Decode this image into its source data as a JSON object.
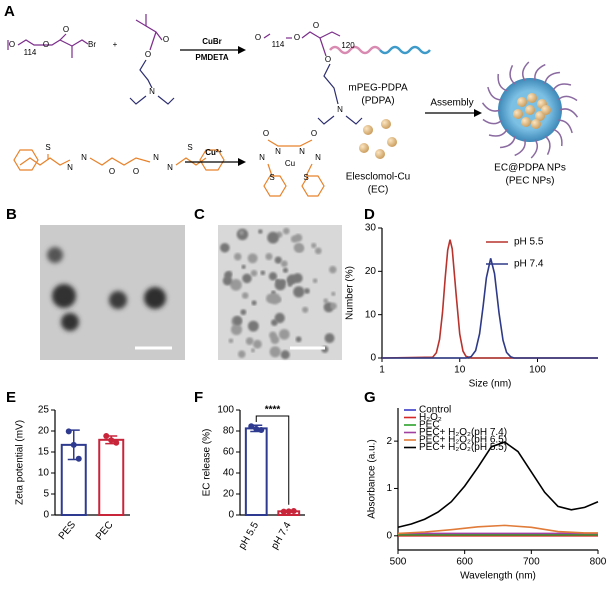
{
  "scheme": {
    "panel": "A",
    "atoms": [
      "O",
      "114",
      "O",
      "O",
      "Br",
      "+",
      "O",
      "O",
      "N",
      "O",
      "114",
      "O",
      "O",
      "O",
      "120",
      "N",
      "S",
      "N",
      "N",
      "O",
      "O",
      "N",
      "N",
      "S",
      "O",
      "O",
      "N",
      "N",
      "Cu",
      "N",
      "N",
      "S",
      "S"
    ],
    "reagents": [
      "CuBr",
      "PMDETA"
    ],
    "polymer_name": [
      "mPEG-PDPA",
      "(PDPA)"
    ],
    "assembly": "Assembly",
    "cu": "Cu²⁺",
    "ec_name": [
      "Elesclomol-Cu",
      "(EC)"
    ],
    "np_name": [
      "EC@PDPA NPs",
      "(PEC NPs)"
    ]
  },
  "images": [
    {
      "panel": "B"
    },
    {
      "panel": "C"
    }
  ],
  "chart_data": [
    {
      "panel": "D",
      "type": "line",
      "xscale": "log",
      "xlabel": "Size (nm)",
      "ylabel": "Number (%)",
      "xlim": [
        1,
        600
      ],
      "xticks": [
        1,
        10,
        100
      ],
      "ylim": [
        0,
        30
      ],
      "yticks": [
        0,
        10,
        20,
        30
      ],
      "legend": "top-right",
      "series": [
        {
          "name": "pH 5.5",
          "color": "#b8332e",
          "x": [
            1,
            4.5,
            5,
            5.5,
            6,
            6.5,
            7,
            7.5,
            8,
            9,
            10,
            11,
            12,
            14,
            600
          ],
          "values": [
            0,
            0.2,
            1.2,
            4.3,
            10.5,
            18.5,
            24.9,
            27.3,
            25.2,
            14.5,
            5.5,
            1.6,
            0.4,
            0,
            0
          ]
        },
        {
          "name": "pH 7.4",
          "color": "#2e3a87",
          "x": [
            1,
            12,
            14,
            16,
            18,
            20,
            22,
            25,
            28,
            32,
            36,
            40,
            45,
            50,
            600
          ],
          "values": [
            0,
            0,
            0.3,
            1.7,
            5.6,
            12,
            18.5,
            23,
            19.5,
            10.4,
            4.1,
            1.3,
            0.3,
            0,
            0
          ]
        }
      ]
    },
    {
      "panel": "E",
      "type": "bar",
      "ylabel": "Zeta potential (mV)",
      "categories": [
        "PES",
        "PEC"
      ],
      "values": [
        16.7,
        17.9
      ],
      "errors": [
        3.5,
        0.9
      ],
      "points": [
        [
          19.9,
          16.7,
          13.4
        ],
        [
          18.8,
          17.8,
          17.2
        ]
      ],
      "colors": [
        "#2e3a8f",
        "#c8243a"
      ],
      "ylim": [
        0,
        25
      ],
      "yticks": [
        0,
        5,
        10,
        15,
        20,
        25
      ]
    },
    {
      "panel": "F",
      "type": "bar",
      "ylabel": "EC release (%)",
      "annotation": "****",
      "categories": [
        "pH 5.5",
        "pH 7.4"
      ],
      "values": [
        82.5,
        3.5
      ],
      "errors": [
        3,
        0.5
      ],
      "points": [
        [
          84.5,
          82,
          81
        ],
        [
          3.2,
          3.5,
          3.8
        ]
      ],
      "colors": [
        "#2e3a8f",
        "#c8243a"
      ],
      "ylim": [
        0,
        100
      ],
      "yticks": [
        0,
        20,
        40,
        60,
        80,
        100
      ]
    },
    {
      "panel": "G",
      "type": "line",
      "xlabel": "Wavelength (nm)",
      "ylabel": "Absorbance (a.u.)",
      "xlim": [
        500,
        800
      ],
      "xticks": [
        500,
        600,
        700,
        800
      ],
      "ylim": [
        -0.3,
        2.7
      ],
      "yticks": [
        0,
        1,
        2
      ],
      "legend": "top-left",
      "series": [
        {
          "name": "Control",
          "color": "#3b3bc8",
          "x": [
            500,
            800
          ],
          "values": [
            0.03,
            0.03
          ]
        },
        {
          "name": "H₂O₂",
          "color": "#d62728",
          "x": [
            500,
            800
          ],
          "values": [
            0,
            0
          ]
        },
        {
          "name": "PEC",
          "color": "#2ca02c",
          "x": [
            500,
            800
          ],
          "values": [
            0.02,
            0.02
          ]
        },
        {
          "name": "PEC+ H₂O₂(pH 7.4)",
          "color": "#a040a0",
          "x": [
            500,
            800
          ],
          "values": [
            0.05,
            0.05
          ]
        },
        {
          "name": "PEC+ H₂O₂(pH 6.5)",
          "color": "#e07b39",
          "x": [
            500,
            540,
            580,
            620,
            660,
            700,
            740,
            780,
            800
          ],
          "values": [
            0.05,
            0.08,
            0.13,
            0.19,
            0.22,
            0.18,
            0.09,
            0.06,
            0.06
          ]
        },
        {
          "name": "PEC+ H₂O₂(pH 5.5)",
          "color": "#000000",
          "x": [
            500,
            520,
            540,
            560,
            580,
            600,
            620,
            640,
            660,
            680,
            700,
            720,
            740,
            760,
            780,
            800
          ],
          "values": [
            0.18,
            0.25,
            0.35,
            0.5,
            0.72,
            1.05,
            1.45,
            1.88,
            1.98,
            1.78,
            1.35,
            0.92,
            0.62,
            0.55,
            0.6,
            0.72
          ]
        }
      ]
    }
  ]
}
